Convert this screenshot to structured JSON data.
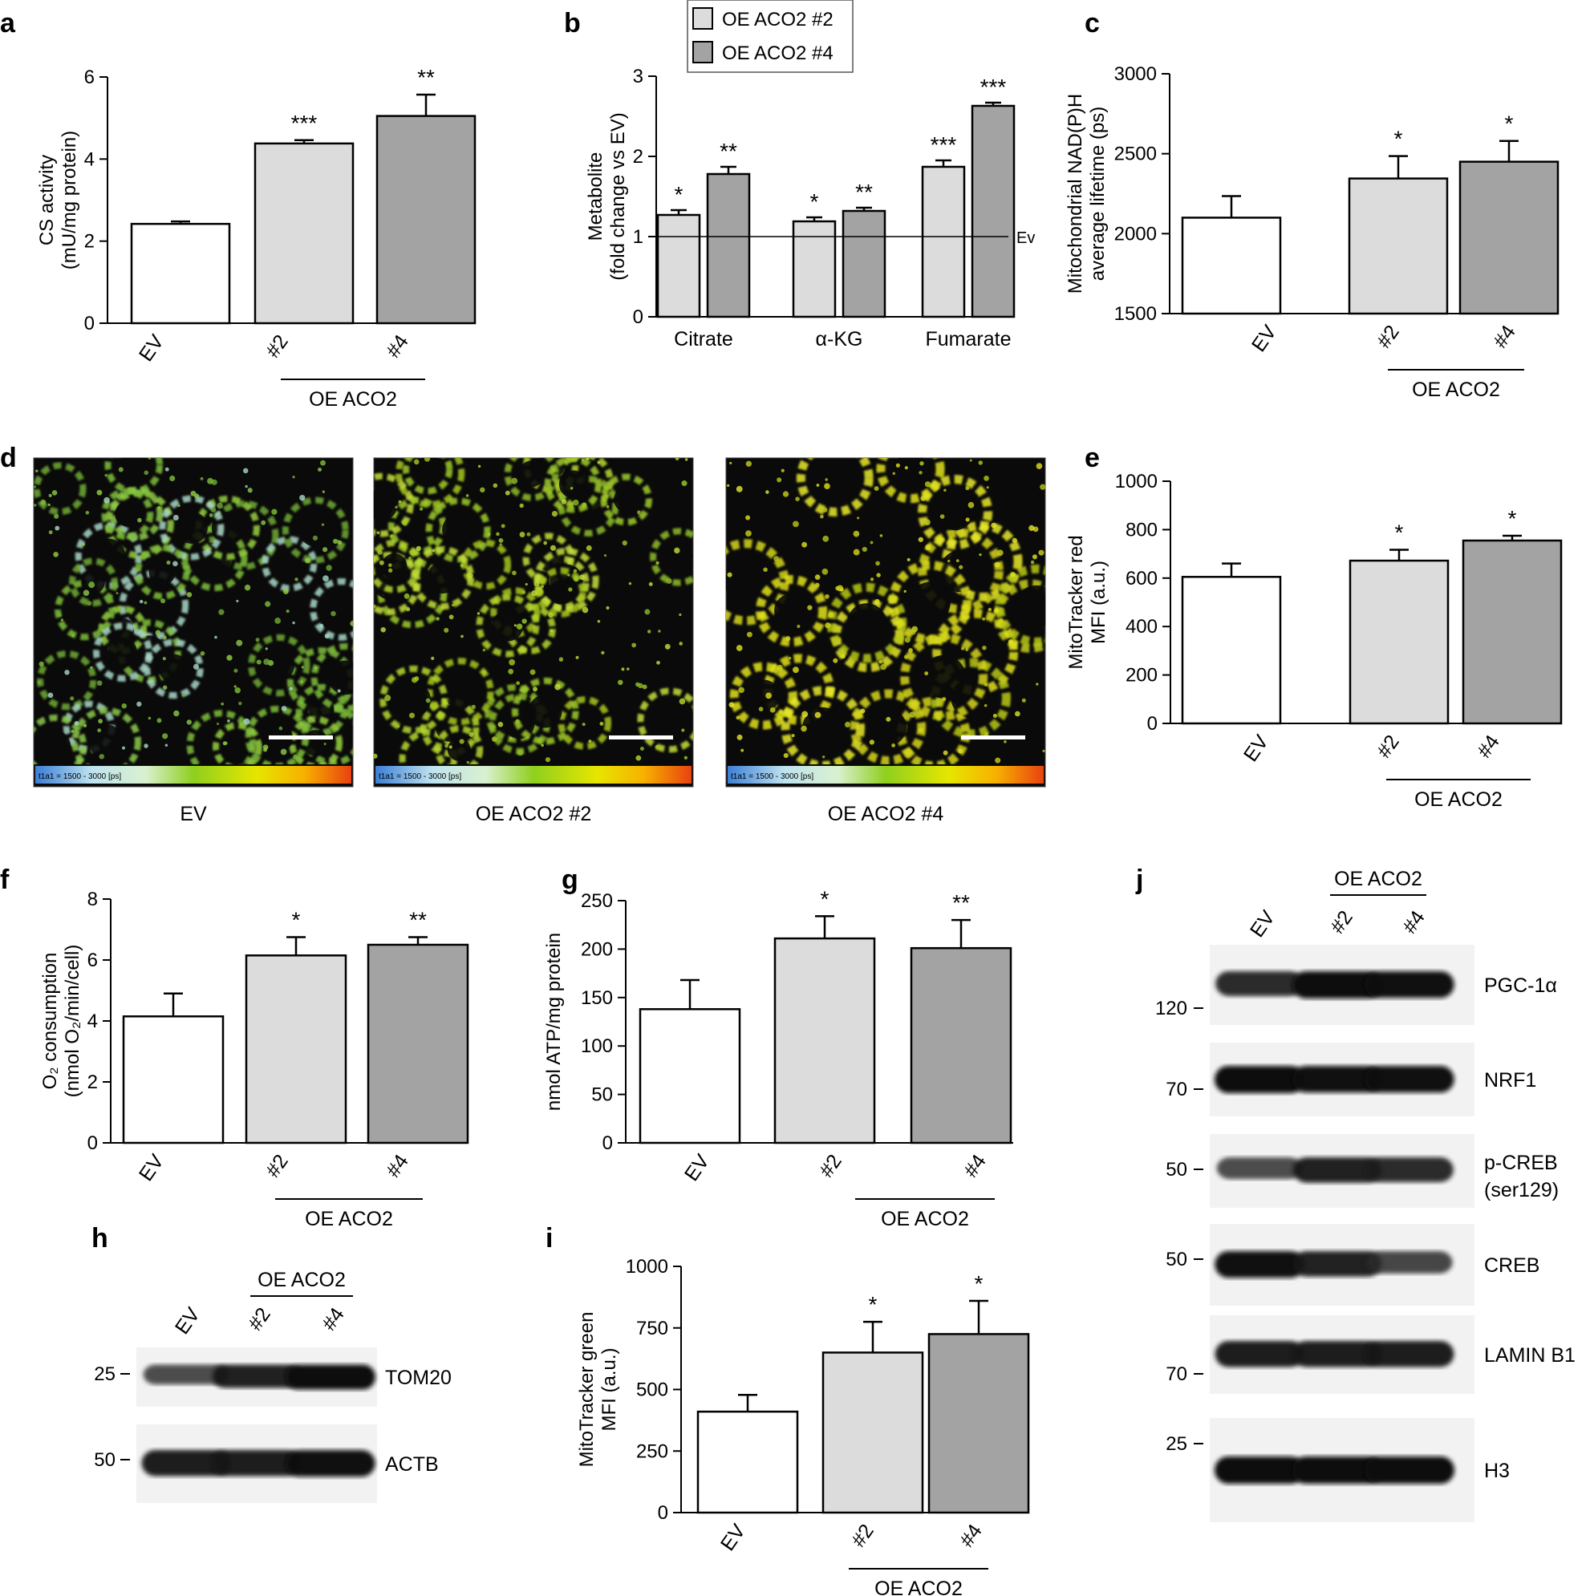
{
  "panels": {
    "a": "a",
    "b": "b",
    "c": "c",
    "d": "d",
    "e": "e",
    "f": "f",
    "g": "g",
    "h": "h",
    "i": "i",
    "j": "j"
  },
  "colors": {
    "ev": "#ffffff",
    "oe2": "#dcdcdc",
    "oe4": "#a3a3a3",
    "axis": "#000000"
  },
  "group_label": "OE ACO2",
  "chart_data": [
    {
      "id": "a",
      "type": "bar",
      "ylabel": [
        "CS activity",
        "(mU/mg protein)"
      ],
      "categories": [
        "EV",
        "#2",
        "#4"
      ],
      "values": [
        2.42,
        4.38,
        5.05
      ],
      "errors": [
        0.06,
        0.08,
        0.52
      ],
      "stars": [
        "",
        "***",
        "**"
      ],
      "yticks": [
        0,
        2,
        4,
        6
      ],
      "ylim": [
        0,
        6
      ]
    },
    {
      "id": "b",
      "type": "bar",
      "ylabel": [
        "Metabolite",
        "(fold change vs EV)"
      ],
      "categories": [
        "Citrate",
        "α-KG",
        "Fumarate"
      ],
      "series": [
        {
          "name": "OE ACO2 #2",
          "values": [
            1.27,
            1.19,
            1.87
          ],
          "errors": [
            0.06,
            0.05,
            0.08
          ],
          "stars": [
            "*",
            "*",
            "***"
          ]
        },
        {
          "name": "OE ACO2 #4",
          "values": [
            1.78,
            1.32,
            2.63
          ],
          "errors": [
            0.09,
            0.04,
            0.04
          ],
          "stars": [
            "**",
            "**",
            "***"
          ]
        }
      ],
      "reference_line": {
        "value": 1,
        "label": "Ev"
      },
      "yticks": [
        0,
        1,
        2,
        3
      ],
      "ylim": [
        0,
        3
      ],
      "legend": "top"
    },
    {
      "id": "c",
      "type": "bar",
      "ylabel": [
        "Mitochondrial NAD(P)H",
        "average lifetime (ps)"
      ],
      "categories": [
        "EV",
        "#2",
        "#4"
      ],
      "values": [
        2100,
        2345,
        2450
      ],
      "errors": [
        135,
        140,
        130
      ],
      "stars": [
        "",
        "*",
        "*"
      ],
      "yticks": [
        1500,
        2000,
        2500,
        3000
      ],
      "ylim": [
        1500,
        3000
      ]
    },
    {
      "id": "e",
      "type": "bar",
      "ylabel": [
        "MitoTracker red",
        "MFI (a.u.)"
      ],
      "categories": [
        "EV",
        "#2",
        "#4"
      ],
      "values": [
        605,
        672,
        755
      ],
      "errors": [
        55,
        45,
        20
      ],
      "stars": [
        "",
        "*",
        "*"
      ],
      "yticks": [
        0,
        200,
        400,
        600,
        800,
        1000
      ],
      "ylim": [
        0,
        1000
      ]
    },
    {
      "id": "f",
      "type": "bar",
      "ylabel": [
        "O₂ consumption",
        "(nmol O₂/min/cell)"
      ],
      "categories": [
        "EV",
        "#2",
        "#4"
      ],
      "values": [
        4.15,
        6.15,
        6.5
      ],
      "errors": [
        0.75,
        0.6,
        0.25
      ],
      "stars": [
        "",
        "*",
        "**"
      ],
      "yticks": [
        0,
        2,
        4,
        6,
        8
      ],
      "ylim": [
        0,
        8
      ]
    },
    {
      "id": "g",
      "type": "bar",
      "ylabel": [
        "nmol ATP/mg protein"
      ],
      "categories": [
        "EV",
        "#2",
        "#4"
      ],
      "values": [
        138,
        211,
        201
      ],
      "errors": [
        30,
        23,
        29
      ],
      "stars": [
        "",
        "*",
        "**"
      ],
      "yticks": [
        0,
        50,
        100,
        150,
        200,
        250
      ],
      "ylim": [
        0,
        250
      ]
    },
    {
      "id": "i",
      "type": "bar",
      "ylabel": [
        "MitoTracker green",
        "MFI (a.u.)"
      ],
      "categories": [
        "EV",
        "#2",
        "#4"
      ],
      "values": [
        410,
        650,
        725
      ],
      "errors": [
        68,
        125,
        135
      ],
      "stars": [
        "",
        "*",
        "*"
      ],
      "yticks": [
        0,
        250,
        500,
        750,
        1000
      ],
      "ylim": [
        0,
        1000
      ]
    }
  ],
  "panel_d": {
    "captions": [
      "EV",
      "OE ACO2 #2",
      "OE ACO2 #4"
    ],
    "colorbar_text": "t1a1 = 1500 - 3000 [ps]"
  },
  "panel_h": {
    "lanes": [
      "EV",
      "#2",
      "#4"
    ],
    "bands": [
      {
        "label": "TOM20",
        "mw": "25",
        "intensity": [
          0.55,
          0.85,
          1.0
        ]
      },
      {
        "label": "ACTB",
        "mw": "50",
        "intensity": [
          0.9,
          0.9,
          0.95
        ]
      }
    ]
  },
  "panel_j": {
    "lanes": [
      "EV",
      "#2",
      "#4"
    ],
    "bands": [
      {
        "label": "PGC-1α",
        "mw": "120",
        "intensity": [
          0.8,
          1.0,
          0.95
        ]
      },
      {
        "label": "NRF1",
        "mw": "70",
        "intensity": [
          1.0,
          0.95,
          0.95
        ]
      },
      {
        "label": "p-CREB",
        "label2": "(ser129)",
        "mw": "50",
        "intensity": [
          0.55,
          0.85,
          0.8
        ]
      },
      {
        "label": "CREB",
        "mw": "50",
        "intensity": [
          0.95,
          0.85,
          0.6
        ]
      },
      {
        "label": "LAMIN B1",
        "mw": "70",
        "intensity": [
          0.9,
          0.9,
          0.9
        ]
      },
      {
        "label": "H3",
        "mw": "25",
        "intensity": [
          1.0,
          1.0,
          1.0
        ]
      }
    ]
  }
}
